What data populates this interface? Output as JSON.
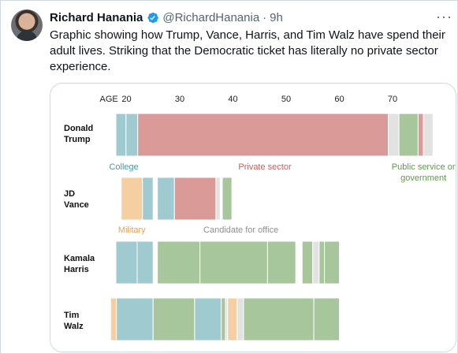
{
  "tweet": {
    "author_name": "Richard Hanania",
    "handle": "@RichardHanania",
    "time": "9h",
    "more_icon": "more-dots-icon",
    "verified_icon": "verified-badge-icon",
    "text": "Graphic showing how Trump, Vance, Harris, and Tim Walz have spend their adult lives. Striking that the Democratic ticket has literally no private sector experience."
  },
  "colors": {
    "college": "#9ecad0",
    "private": "#d99a98",
    "public": "#a7c69c",
    "military": "#f5cfa2",
    "candidate": "#e2e2e2",
    "college_text": "#4c96a6",
    "private_text": "#c4605c",
    "public_text": "#5d9a4a",
    "military_text": "#e6a24d",
    "candidate_text": "#8f8f8f"
  },
  "chart_data": {
    "type": "bar",
    "x_axis_label": "AGE",
    "x_ticks": [
      20,
      30,
      40,
      50,
      60,
      70
    ],
    "xlim": [
      18,
      79
    ],
    "people": [
      {
        "first": "Donald",
        "last": "Trump",
        "segments": [
          {
            "start": 18.0,
            "end": 19.9,
            "category": "college"
          },
          {
            "start": 19.9,
            "end": 22.1,
            "category": "college"
          },
          {
            "start": 22.1,
            "end": 69.2,
            "category": "private"
          },
          {
            "start": 69.2,
            "end": 71.2,
            "category": "candidate"
          },
          {
            "start": 71.2,
            "end": 74.8,
            "category": "public"
          },
          {
            "start": 74.8,
            "end": 75.8,
            "category": "private"
          },
          {
            "start": 75.8,
            "end": 77.6,
            "category": "candidate"
          }
        ]
      },
      {
        "first": "JD",
        "last": "Vance",
        "segments": [
          {
            "start": 19.0,
            "end": 23.0,
            "category": "military"
          },
          {
            "start": 23.0,
            "end": 25.0,
            "category": "college"
          },
          {
            "start": 25.8,
            "end": 29.0,
            "category": "college"
          },
          {
            "start": 29.0,
            "end": 36.8,
            "category": "private"
          },
          {
            "start": 36.8,
            "end": 37.6,
            "category": "candidate"
          },
          {
            "start": 38.0,
            "end": 39.8,
            "category": "public"
          }
        ]
      },
      {
        "first": "Kamala",
        "last": "Harris",
        "segments": [
          {
            "start": 18.0,
            "end": 22.0,
            "category": "college"
          },
          {
            "start": 22.0,
            "end": 25.0,
            "category": "college"
          },
          {
            "start": 25.8,
            "end": 33.8,
            "category": "public"
          },
          {
            "start": 33.8,
            "end": 46.5,
            "category": "public"
          },
          {
            "start": 46.5,
            "end": 51.8,
            "category": "public"
          },
          {
            "start": 53.0,
            "end": 55.0,
            "category": "public"
          },
          {
            "start": 55.0,
            "end": 56.2,
            "category": "candidate"
          },
          {
            "start": 56.2,
            "end": 57.2,
            "category": "public"
          },
          {
            "start": 57.2,
            "end": 60.0,
            "category": "public"
          }
        ]
      },
      {
        "first": "Tim",
        "last": "Walz",
        "segments": [
          {
            "start": 17.0,
            "end": 18.1,
            "category": "military"
          },
          {
            "start": 18.1,
            "end": 25.0,
            "category": "college"
          },
          {
            "start": 25.0,
            "end": 32.8,
            "category": "public"
          },
          {
            "start": 32.8,
            "end": 37.8,
            "category": "college"
          },
          {
            "start": 37.8,
            "end": 38.6,
            "category": "public"
          },
          {
            "start": 38.6,
            "end": 39.0,
            "category": "candidate"
          },
          {
            "start": 39.0,
            "end": 40.8,
            "category": "military"
          },
          {
            "start": 40.8,
            "end": 42.0,
            "category": "candidate"
          },
          {
            "start": 42.0,
            "end": 55.2,
            "category": "public"
          },
          {
            "start": 55.2,
            "end": 60.0,
            "category": "public"
          }
        ]
      }
    ],
    "annotations": [
      {
        "text": "College",
        "category": "college",
        "row": 0,
        "age": 19.5,
        "anchor": "middle"
      },
      {
        "text": "Private sector",
        "category": "private",
        "row": 0,
        "age": 46.0,
        "anchor": "middle"
      },
      {
        "text": "Public service or",
        "category": "public",
        "row": 0,
        "age": 75.8,
        "anchor": "middle"
      },
      {
        "text": "government",
        "category": "public",
        "row": 0,
        "age": 75.8,
        "anchor": "middle",
        "line": 2
      },
      {
        "text": "Military",
        "category": "military",
        "row": 1,
        "age": 21.0,
        "anchor": "middle"
      },
      {
        "text": "Candidate for office",
        "category": "candidate",
        "row": 1,
        "age": 41.5,
        "anchor": "middle"
      }
    ]
  }
}
